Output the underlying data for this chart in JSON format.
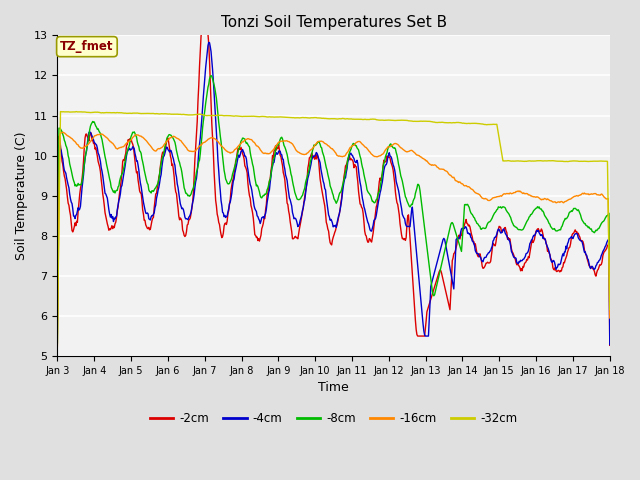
{
  "title": "Tonzi Soil Temperatures Set B",
  "xlabel": "Time",
  "ylabel": "Soil Temperature (C)",
  "ylim": [
    5.0,
    13.0
  ],
  "yticks": [
    5.0,
    6.0,
    7.0,
    8.0,
    9.0,
    10.0,
    11.0,
    12.0,
    13.0
  ],
  "xtick_labels": [
    "Jan 3",
    "Jan 4",
    "Jan 5",
    "Jan 6",
    "Jan 7",
    "Jan 8",
    "Jan 9",
    "Jan 10",
    "Jan 11",
    "Jan 12",
    "Jan 13",
    "Jan 14",
    "Jan 15",
    "Jan 16",
    "Jan 17",
    "Jan 18"
  ],
  "legend_label": "TZ_fmet",
  "series_labels": [
    "-2cm",
    "-4cm",
    "-8cm",
    "-16cm",
    "-32cm"
  ],
  "series_colors": [
    "#dd0000",
    "#0000cc",
    "#00bb00",
    "#ff8800",
    "#cccc00"
  ],
  "background_color": "#e0e0e0",
  "plot_bg_color": "#f2f2f2",
  "grid_color": "#ffffff",
  "figsize": [
    6.4,
    4.8
  ],
  "dpi": 100
}
